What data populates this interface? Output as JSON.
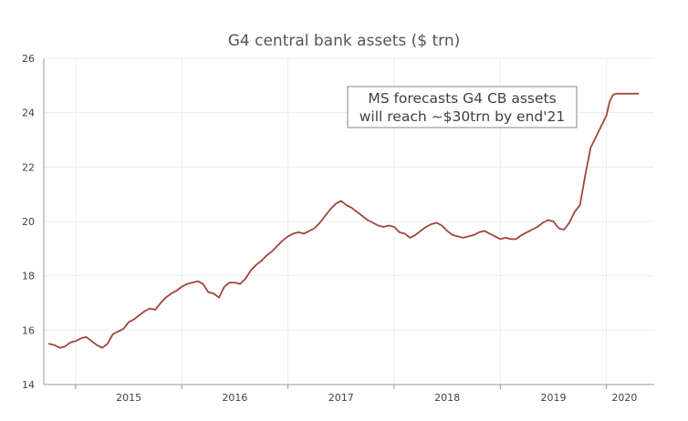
{
  "chart_data": {
    "type": "line",
    "title": "G4 central bank assets ($ trn)",
    "xlabel": "",
    "ylabel": "",
    "ylim": [
      14,
      26
    ],
    "yticks": [
      14,
      16,
      18,
      20,
      22,
      24,
      26
    ],
    "xlim": [
      2014.7,
      2020.45
    ],
    "x_tick_labels": [
      "2015",
      "2016",
      "2017",
      "2018",
      "2019",
      "2020"
    ],
    "grid": true,
    "series": [
      {
        "color": "#a0463a",
        "x": [
          2014.75,
          2014.8,
          2014.85,
          2014.9,
          2014.95,
          2015.0,
          2015.05,
          2015.1,
          2015.15,
          2015.2,
          2015.25,
          2015.3,
          2015.35,
          2015.4,
          2015.45,
          2015.5,
          2015.55,
          2015.6,
          2015.65,
          2015.7,
          2015.75,
          2015.8,
          2015.85,
          2015.9,
          2015.95,
          2016.0,
          2016.05,
          2016.1,
          2016.15,
          2016.2,
          2016.25,
          2016.3,
          2016.35,
          2016.4,
          2016.45,
          2016.5,
          2016.55,
          2016.6,
          2016.65,
          2016.7,
          2016.75,
          2016.8,
          2016.85,
          2016.9,
          2016.95,
          2017.0,
          2017.05,
          2017.1,
          2017.15,
          2017.2,
          2017.25,
          2017.3,
          2017.35,
          2017.4,
          2017.45,
          2017.5,
          2017.55,
          2017.6,
          2017.65,
          2017.7,
          2017.75,
          2017.8,
          2017.85,
          2017.9,
          2017.95,
          2018.0,
          2018.05,
          2018.1,
          2018.15,
          2018.2,
          2018.25,
          2018.3,
          2018.35,
          2018.4,
          2018.45,
          2018.5,
          2018.55,
          2018.6,
          2018.65,
          2018.7,
          2018.75,
          2018.8,
          2018.85,
          2018.9,
          2018.95,
          2019.0,
          2019.05,
          2019.1,
          2019.15,
          2019.2,
          2019.25,
          2019.3,
          2019.35,
          2019.4,
          2019.45,
          2019.5,
          2019.55,
          2019.6,
          2019.65,
          2019.7,
          2019.75,
          2019.8,
          2019.85,
          2019.9,
          2019.95,
          2020.0,
          2020.03,
          2020.06,
          2020.09,
          2020.12,
          2020.15,
          2020.18,
          2020.21,
          2020.24,
          2020.27,
          2020.3
        ],
        "values": [
          15.5,
          15.45,
          15.35,
          15.4,
          15.55,
          15.6,
          15.7,
          15.75,
          15.6,
          15.45,
          15.35,
          15.5,
          15.85,
          15.95,
          16.05,
          16.3,
          16.4,
          16.55,
          16.7,
          16.8,
          16.75,
          17.0,
          17.2,
          17.35,
          17.45,
          17.6,
          17.7,
          17.75,
          17.8,
          17.7,
          17.4,
          17.35,
          17.2,
          17.6,
          17.75,
          17.75,
          17.7,
          17.9,
          18.2,
          18.4,
          18.55,
          18.75,
          18.9,
          19.1,
          19.3,
          19.45,
          19.55,
          19.6,
          19.55,
          19.65,
          19.75,
          19.95,
          20.2,
          20.45,
          20.65,
          20.75,
          20.6,
          20.5,
          20.35,
          20.2,
          20.05,
          19.95,
          19.85,
          19.8,
          19.85,
          19.8,
          19.6,
          19.55,
          19.4,
          19.5,
          19.65,
          19.8,
          19.9,
          19.95,
          19.85,
          19.65,
          19.5,
          19.45,
          19.4,
          19.45,
          19.5,
          19.6,
          19.65,
          19.55,
          19.45,
          19.35,
          19.4,
          19.35,
          19.35,
          19.5,
          19.6,
          19.7,
          19.8,
          19.95,
          20.05,
          20.0,
          19.75,
          19.7,
          19.95,
          20.35,
          20.6,
          21.7,
          22.7,
          23.1,
          23.5,
          23.9,
          24.4,
          24.65,
          24.7,
          24.7,
          24.7,
          24.7,
          24.7,
          24.7,
          24.7,
          24.7
        ]
      }
    ],
    "annotation": {
      "lines": [
        "MS forecasts G4 CB assets",
        "will reach ~$30trn by end'21"
      ]
    }
  }
}
